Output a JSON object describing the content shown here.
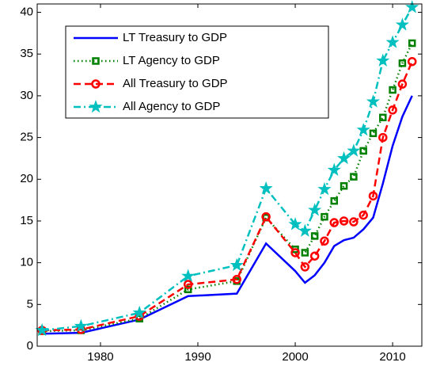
{
  "chart_data": {
    "type": "line",
    "x": [
      1974,
      1978,
      1984,
      1989,
      1994,
      1997,
      2000,
      2001,
      2002,
      2003,
      2004,
      2005,
      2006,
      2007,
      2008,
      2009,
      2010,
      2011,
      2012
    ],
    "series": [
      {
        "name": "LT Treasury to GDP",
        "color": "#0000ff",
        "linestyle": "solid",
        "marker": "none",
        "values": [
          1.5,
          1.6,
          3.2,
          6.0,
          6.3,
          12.3,
          9.0,
          7.6,
          8.5,
          10.0,
          12.0,
          12.7,
          13.0,
          14.0,
          15.4,
          19.5,
          24.0,
          27.5,
          30.0
        ]
      },
      {
        "name": "LT Agency to GDP",
        "color": "#008000",
        "linestyle": "dotted",
        "marker": "square",
        "values": [
          1.8,
          1.9,
          3.3,
          6.8,
          7.8,
          15.4,
          11.6,
          11.2,
          13.2,
          15.5,
          17.4,
          19.2,
          20.3,
          23.4,
          25.5,
          27.4,
          30.7,
          33.9,
          36.3
        ]
      },
      {
        "name": "All Treasury to GDP",
        "color": "#ff0000",
        "linestyle": "dashed",
        "marker": "circle",
        "values": [
          1.9,
          2.0,
          3.6,
          7.4,
          8.0,
          15.5,
          11.2,
          9.5,
          10.8,
          12.6,
          14.8,
          15.0,
          14.9,
          15.7,
          18.0,
          25.0,
          28.3,
          31.4,
          34.1
        ]
      },
      {
        "name": "All Agency to GDP",
        "color": "#00bfbf",
        "linestyle": "dashdot",
        "marker": "star",
        "values": [
          1.9,
          2.4,
          4.0,
          8.4,
          9.7,
          18.9,
          14.6,
          13.8,
          16.3,
          18.8,
          21.1,
          22.5,
          23.4,
          25.9,
          29.3,
          34.2,
          36.4,
          38.5,
          40.6
        ]
      }
    ],
    "xlim": [
      1973.5,
      2013
    ],
    "xticks": [
      1980,
      1990,
      2000,
      2010
    ],
    "ylim": [
      0,
      41
    ],
    "yticks": [
      0,
      5,
      10,
      15,
      20,
      25,
      30,
      35,
      40
    ],
    "grid": false,
    "legend": "upper-left"
  }
}
